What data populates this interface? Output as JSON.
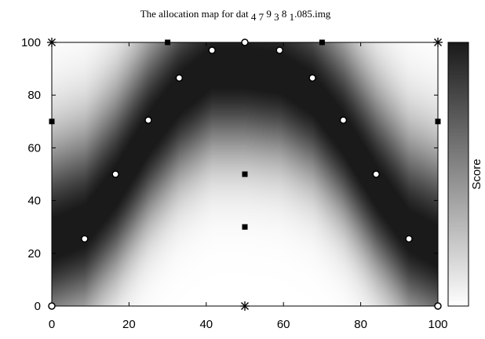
{
  "chart_data": {
    "type": "heatmap",
    "title": {
      "prefix": "The allocation map for dat",
      "parts": [
        {
          "text": "4 7",
          "sub": true
        },
        {
          "text": " 9 ",
          "sub": false
        },
        {
          "text": "3",
          "sub": true
        },
        {
          "text": " 8 ",
          "sub": false
        },
        {
          "text": "1",
          "sub": true
        },
        {
          "text": ".085.img",
          "sub": false
        }
      ]
    },
    "colorbar_label": "Score",
    "colormap": "gray_reversed",
    "xlim": [
      0,
      100
    ],
    "ylim": [
      0,
      100
    ],
    "xticks": [
      0,
      20,
      40,
      60,
      80,
      100
    ],
    "yticks": [
      0,
      20,
      40,
      60,
      80,
      100
    ],
    "grid": false,
    "markers": {
      "open_circles": [
        [
          0,
          0
        ],
        [
          8.5,
          25.5
        ],
        [
          16.5,
          50
        ],
        [
          25,
          70.5
        ],
        [
          33,
          86.5
        ],
        [
          41.5,
          97
        ],
        [
          50,
          100
        ],
        [
          59,
          97
        ],
        [
          67.5,
          86.5
        ],
        [
          75.5,
          70.5
        ],
        [
          84,
          50
        ],
        [
          92.5,
          25.5
        ],
        [
          100,
          0
        ]
      ],
      "filled_squares": [
        [
          0,
          70
        ],
        [
          30,
          100
        ],
        [
          70,
          100
        ],
        [
          100,
          70
        ],
        [
          50,
          50
        ],
        [
          50,
          30
        ]
      ],
      "stars": [
        [
          0,
          100
        ],
        [
          100,
          100
        ],
        [
          50,
          0
        ]
      ]
    },
    "band": {
      "center_path": [
        [
          0,
          25
        ],
        [
          8.5,
          30
        ],
        [
          16.5,
          45
        ],
        [
          25,
          65
        ],
        [
          33,
          80
        ],
        [
          41.5,
          90
        ],
        [
          50,
          90
        ],
        [
          59,
          88
        ],
        [
          67.5,
          80
        ],
        [
          75.5,
          65
        ],
        [
          84,
          45
        ],
        [
          92.5,
          28
        ],
        [
          100,
          22
        ]
      ],
      "description_values": "score is highest along the arc of open circles and fades to zero away from it"
    },
    "colors": {
      "high": "#1a1a1a",
      "low": "#ffffff",
      "axis": "#000000"
    }
  }
}
